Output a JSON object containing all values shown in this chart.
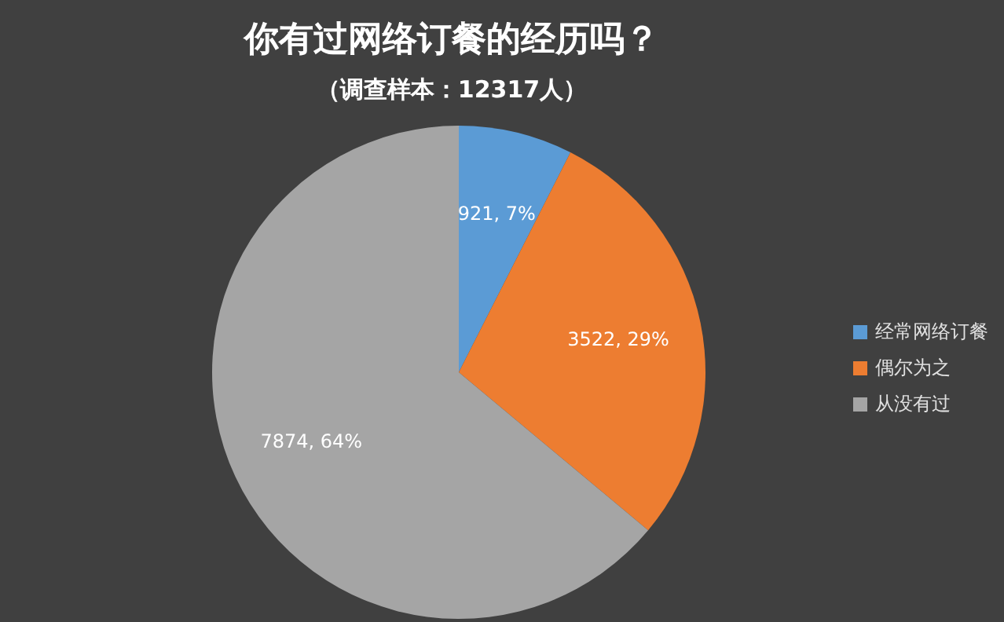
{
  "chart_data": {
    "type": "pie",
    "title": "你有过网络订餐的经历吗？",
    "subtitle": "（调查样本：12317人）",
    "categories": [
      "经常网络订餐",
      "偶尔为之",
      "从没有过"
    ],
    "values": [
      921,
      3522,
      7874
    ],
    "colors": [
      "#5b9bd5",
      "#ed7d31",
      "#a5a5a5"
    ],
    "value_labels": [
      "921, 7%",
      "3522, 29%",
      "7874, 64%"
    ],
    "legend": "right"
  }
}
